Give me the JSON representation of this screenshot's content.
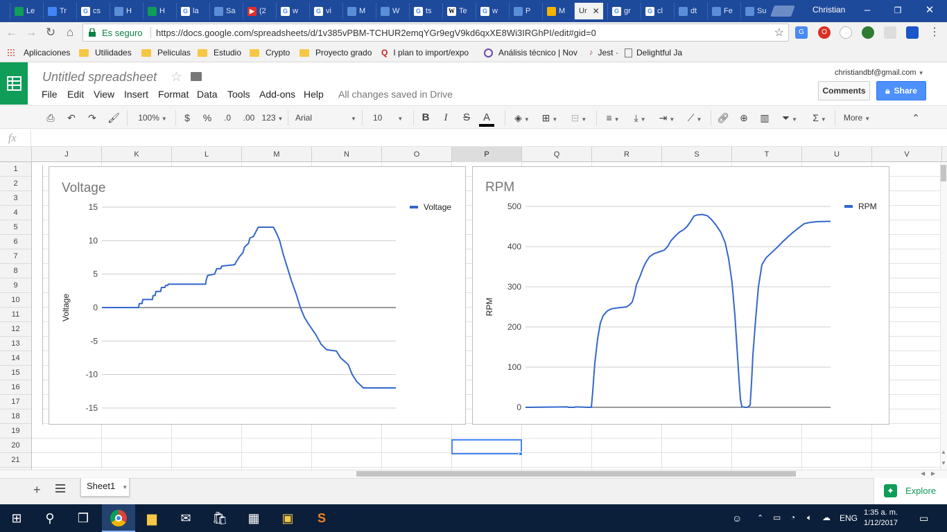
{
  "browser": {
    "user": "Christian",
    "active_tab_label": "Ur",
    "tabs": [
      "Le",
      "Tr",
      "cs",
      "H",
      "H",
      "la",
      "Sa",
      "(2",
      "w",
      "vi",
      "M",
      "W",
      "ts",
      "Te",
      "w",
      "P",
      "M",
      "gr",
      "cl",
      "dt",
      "Fe",
      "Su"
    ],
    "secure_label": "Es seguro",
    "url": "https://docs.google.com/spreadsheets/d/1v385vPBM-TCHUR2emqYGr9egV9kd6qxXE8Wi3IRGhPI/edit#gid=0",
    "bookmarks": [
      "Aplicaciones",
      "Utilidades",
      "Peliculas",
      "Estudio",
      "Crypto",
      "Proyecto grado",
      "I plan to import/expo",
      "Análisis técnico | Nov",
      "Jest ·",
      "Delightful Ja"
    ]
  },
  "doc": {
    "title": "Untitled spreadsheet",
    "menu": [
      "File",
      "Edit",
      "View",
      "Insert",
      "Format",
      "Data",
      "Tools",
      "Add-ons",
      "Help"
    ],
    "save_status": "All changes saved in Drive",
    "email": "christiandbf@gmail.com",
    "comments_label": "Comments",
    "share_label": "Share"
  },
  "toolbar": {
    "zoom": "100%",
    "currency": "$",
    "percent": "%",
    "dec_less": ".0",
    "dec_more": ".00",
    "number_fmt": "123",
    "font": "Arial",
    "font_size": "10",
    "bold": "B",
    "italic": "I",
    "strike": "S",
    "text_color": "A",
    "more": "More"
  },
  "formula_bar": {
    "fx": "fx",
    "value": ""
  },
  "grid": {
    "columns": [
      "J",
      "K",
      "L",
      "M",
      "N",
      "O",
      "P",
      "Q",
      "R",
      "S",
      "T",
      "U",
      "V"
    ],
    "selected_column": "P",
    "rows": [
      "1",
      "2",
      "3",
      "4",
      "5",
      "6",
      "7",
      "8",
      "9",
      "10",
      "11",
      "12",
      "13",
      "14",
      "15",
      "16",
      "17",
      "18",
      "19",
      "20",
      "21"
    ],
    "selected_cell": "P20"
  },
  "chart_data": [
    {
      "type": "line",
      "title": "Voltage",
      "ylabel": "Voltage",
      "xlabel": "",
      "ylim": [
        -15,
        15
      ],
      "yticks": [
        15,
        10,
        5,
        0,
        -5,
        -10,
        -15
      ],
      "legend": "right",
      "grid": true,
      "color": "#3366cc",
      "series": [
        {
          "name": "Voltage",
          "points": [
            [
              0,
              0
            ],
            [
              53,
              0
            ],
            [
              54,
              0.6
            ],
            [
              58,
              0.6
            ],
            [
              59,
              1.2
            ],
            [
              73,
              1.2
            ],
            [
              74,
              1.8
            ],
            [
              77,
              1.8
            ],
            [
              78,
              2.4
            ],
            [
              85,
              2.4
            ],
            [
              86,
              3.0
            ],
            [
              91,
              3.0
            ],
            [
              92,
              3.3
            ],
            [
              95,
              3.3
            ],
            [
              96,
              3.5
            ],
            [
              150,
              3.5
            ],
            [
              151,
              4.2
            ],
            [
              153,
              4.8
            ],
            [
              163,
              5.0
            ],
            [
              166,
              5.8
            ],
            [
              172,
              5.8
            ],
            [
              173,
              6.2
            ],
            [
              192,
              6.4
            ],
            [
              194,
              6.8
            ],
            [
              199,
              7.6
            ],
            [
              204,
              8.2
            ],
            [
              206,
              9.0
            ],
            [
              212,
              9.6
            ],
            [
              214,
              10.4
            ],
            [
              219,
              10.6
            ],
            [
              226,
              12.0
            ],
            [
              248,
              12.0
            ],
            [
              253,
              11.0
            ],
            [
              257,
              10.0
            ],
            [
              262,
              8.0
            ],
            [
              268,
              6.0
            ],
            [
              274,
              4.0
            ],
            [
              281,
              2.0
            ],
            [
              287,
              0
            ],
            [
              293,
              -1.5
            ],
            [
              299,
              -2.5
            ],
            [
              309,
              -4.0
            ],
            [
              317,
              -5.5
            ],
            [
              325,
              -6.3
            ],
            [
              339,
              -6.5
            ],
            [
              345,
              -7.5
            ],
            [
              356,
              -8.5
            ],
            [
              362,
              -10.0
            ],
            [
              368,
              -11.0
            ],
            [
              373,
              -11.5
            ],
            [
              378,
              -12.0
            ],
            [
              425,
              -12.0
            ]
          ]
        }
      ]
    },
    {
      "type": "line",
      "title": "RPM",
      "ylabel": "RPM",
      "xlabel": "",
      "ylim": [
        0,
        500
      ],
      "yticks": [
        500,
        400,
        300,
        200,
        100,
        0
      ],
      "legend": "right",
      "grid": true,
      "color": "#3366cc",
      "series": [
        {
          "name": "RPM",
          "points": [
            [
              0,
              0
            ],
            [
              60,
              1
            ],
            [
              62,
              0
            ],
            [
              70,
              0
            ],
            [
              72,
              1
            ],
            [
              90,
              0
            ],
            [
              95,
              0
            ],
            [
              97,
              40
            ],
            [
              100,
              110
            ],
            [
              104,
              170
            ],
            [
              108,
              210
            ],
            [
              112,
              228
            ],
            [
              118,
              240
            ],
            [
              124,
              245
            ],
            [
              134,
              248
            ],
            [
              146,
              250
            ],
            [
              150,
              255
            ],
            [
              154,
              262
            ],
            [
              157,
              280
            ],
            [
              160,
              305
            ],
            [
              165,
              325
            ],
            [
              170,
              348
            ],
            [
              174,
              362
            ],
            [
              179,
              375
            ],
            [
              185,
              382
            ],
            [
              193,
              387
            ],
            [
              200,
              391
            ],
            [
              205,
              400
            ],
            [
              210,
              415
            ],
            [
              217,
              428
            ],
            [
              222,
              436
            ],
            [
              228,
              442
            ],
            [
              233,
              450
            ],
            [
              238,
              462
            ],
            [
              243,
              476
            ],
            [
              248,
              479
            ],
            [
              255,
              480
            ],
            [
              262,
              477
            ],
            [
              268,
              468
            ],
            [
              275,
              453
            ],
            [
              282,
              435
            ],
            [
              288,
              410
            ],
            [
              293,
              370
            ],
            [
              298,
              310
            ],
            [
              302,
              230
            ],
            [
              305,
              150
            ],
            [
              308,
              70
            ],
            [
              310,
              20
            ],
            [
              312,
              2
            ],
            [
              316,
              0
            ],
            [
              320,
              0
            ],
            [
              324,
              5
            ],
            [
              326,
              60
            ],
            [
              328,
              130
            ],
            [
              332,
              220
            ],
            [
              336,
              300
            ],
            [
              341,
              355
            ],
            [
              347,
              372
            ],
            [
              355,
              385
            ],
            [
              363,
              398
            ],
            [
              371,
              412
            ],
            [
              379,
              425
            ],
            [
              387,
              437
            ],
            [
              395,
              448
            ],
            [
              402,
              457
            ],
            [
              410,
              460
            ],
            [
              420,
              462
            ],
            [
              440,
              463
            ]
          ]
        }
      ]
    }
  ],
  "sheet_tab": "Sheet1",
  "explore_label": "Explore",
  "taskbar": {
    "language": "ENG",
    "time": "1:35 a. m.",
    "date": "1/12/2017"
  }
}
